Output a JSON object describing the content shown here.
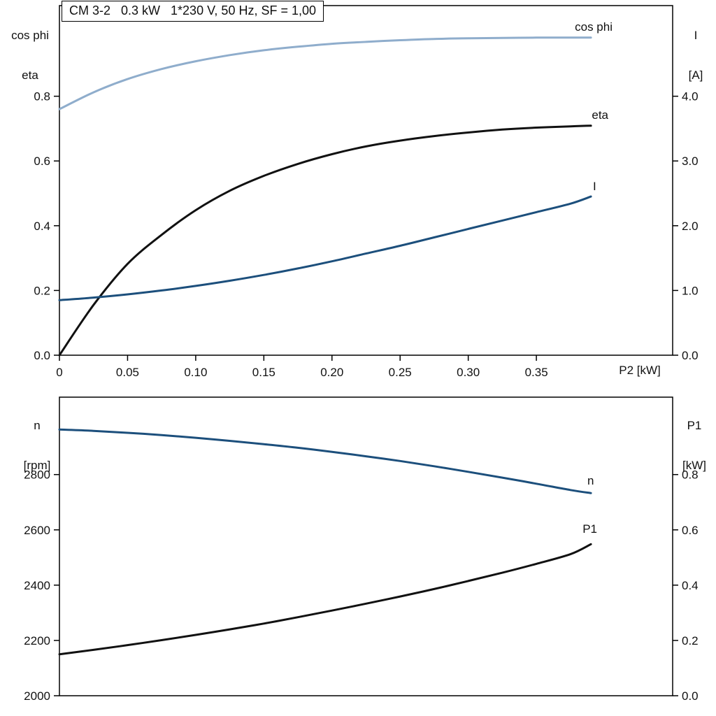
{
  "header": {
    "title": "CM 3-2   0.3 kW   1*230 V, 50 Hz, SF = 1,00"
  },
  "axis_corner_labels": {
    "top_left": [
      "cos phi",
      "eta"
    ],
    "top_right": [
      "I",
      "[A]"
    ],
    "x_label": "P2 [kW]",
    "bottom_left": [
      "n",
      "[rpm]"
    ],
    "bottom_right": [
      "P1",
      "[kW]"
    ]
  },
  "colors": {
    "light_blue": "#8fadcc",
    "dark_blue": "#1c4f7c",
    "black": "#111111"
  },
  "chart_data": [
    {
      "type": "line",
      "title": "CM 3-2   0.3 kW   1*230 V, 50 Hz, SF = 1,00",
      "xlabel": "P2 [kW]",
      "ylabel_left": "cos phi / eta",
      "ylabel_right": "I [A]",
      "xlim": [
        0,
        0.45
      ],
      "ylim_left": [
        0,
        1.08
      ],
      "ylim_right": [
        0,
        5.4
      ],
      "grid": false,
      "xticks": [
        0,
        0.05,
        0.1,
        0.15,
        0.2,
        0.25,
        0.3,
        0.35
      ],
      "xtick_labels": [
        "0",
        "0.05",
        "0.10",
        "0.15",
        "0.20",
        "0.25",
        "0.30",
        "0.35"
      ],
      "yticks_left": [
        0.0,
        0.2,
        0.4,
        0.6,
        0.8
      ],
      "ytick_labels_left": [
        "0.0",
        "0.2",
        "0.4",
        "0.6",
        "0.8"
      ],
      "yticks_right": [
        0.0,
        1.0,
        2.0,
        3.0,
        4.0
      ],
      "ytick_labels_right": [
        "0.0",
        "1.0",
        "2.0",
        "3.0",
        "4.0"
      ],
      "x": [
        0,
        0.025,
        0.05,
        0.075,
        0.1,
        0.125,
        0.15,
        0.175,
        0.2,
        0.225,
        0.25,
        0.275,
        0.3,
        0.325,
        0.35,
        0.375,
        0.39
      ],
      "series": [
        {
          "name": "cos phi",
          "axis": "left",
          "color": "#8fadcc",
          "values": [
            0.76,
            0.812,
            0.853,
            0.884,
            0.908,
            0.927,
            0.942,
            0.953,
            0.962,
            0.968,
            0.973,
            0.977,
            0.979,
            0.98,
            0.981,
            0.981,
            0.981
          ]
        },
        {
          "name": "eta",
          "axis": "left",
          "color": "#111111",
          "values": [
            0.0,
            0.155,
            0.282,
            0.372,
            0.448,
            0.508,
            0.554,
            0.591,
            0.621,
            0.645,
            0.663,
            0.677,
            0.688,
            0.697,
            0.703,
            0.707,
            0.709
          ]
        },
        {
          "name": "I",
          "axis": "right",
          "color": "#1c4f7c",
          "values": [
            0.85,
            0.89,
            0.94,
            1.0,
            1.07,
            1.15,
            1.24,
            1.34,
            1.45,
            1.57,
            1.69,
            1.82,
            1.95,
            2.08,
            2.21,
            2.34,
            2.45
          ]
        }
      ]
    },
    {
      "type": "line",
      "title": "",
      "xlabel": "",
      "ylabel_left": "n [rpm]",
      "ylabel_right": "P1 [kW]",
      "xlim": [
        0,
        0.45
      ],
      "ylim_left": [
        2000,
        3080
      ],
      "ylim_right": [
        0,
        1.08
      ],
      "grid": false,
      "xticks": [],
      "xtick_labels": [],
      "yticks_left": [
        2000,
        2200,
        2400,
        2600,
        2800
      ],
      "ytick_labels_left": [
        "2000",
        "2200",
        "2400",
        "2600",
        "2800"
      ],
      "yticks_right": [
        0.0,
        0.2,
        0.4,
        0.6,
        0.8
      ],
      "ytick_labels_right": [
        "0.0",
        "0.2",
        "0.4",
        "0.6",
        "0.8"
      ],
      "x": [
        0,
        0.025,
        0.05,
        0.075,
        0.1,
        0.125,
        0.15,
        0.175,
        0.2,
        0.225,
        0.25,
        0.275,
        0.3,
        0.325,
        0.35,
        0.375,
        0.39
      ],
      "series": [
        {
          "name": "n",
          "axis": "left",
          "color": "#1c4f7c",
          "values": [
            2963,
            2958,
            2951,
            2943,
            2933,
            2922,
            2910,
            2897,
            2882,
            2866,
            2849,
            2830,
            2810,
            2789,
            2767,
            2744,
            2733
          ]
        },
        {
          "name": "P1",
          "axis": "right",
          "color": "#111111",
          "values": [
            0.15,
            0.166,
            0.183,
            0.201,
            0.22,
            0.24,
            0.261,
            0.284,
            0.308,
            0.333,
            0.359,
            0.386,
            0.415,
            0.445,
            0.477,
            0.512,
            0.548
          ]
        }
      ]
    }
  ]
}
